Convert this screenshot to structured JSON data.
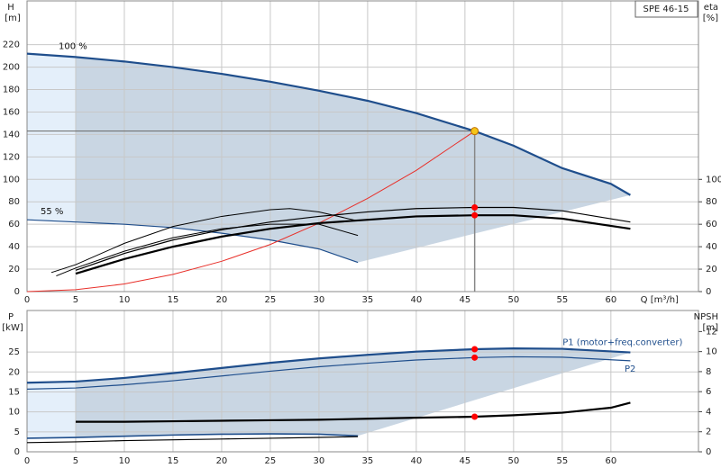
{
  "chart_data": [
    {
      "type": "line",
      "title": "SPE 46-15",
      "ylabel": "H",
      "ylabel_unit": "[m]",
      "y2label": "eta",
      "y2label_unit": "[%]",
      "xlabel": "Q [m³/h]",
      "xlim": [
        0,
        69
      ],
      "xticks": [
        0,
        5,
        10,
        15,
        20,
        25,
        30,
        35,
        40,
        45,
        50,
        55,
        60
      ],
      "ylim": [
        0,
        259
      ],
      "yticks": [
        0,
        20,
        40,
        60,
        80,
        100,
        120,
        140,
        160,
        180,
        200,
        220
      ],
      "y2lim": [
        0,
        259
      ],
      "y2ticks": [
        0,
        20,
        40,
        60,
        80,
        100
      ],
      "grid": true,
      "series": [
        {
          "name": "100 %",
          "color": "#1f4e8c",
          "width": 2.2,
          "x": [
            0,
            5,
            10,
            15,
            20,
            25,
            30,
            35,
            40,
            46,
            50,
            55,
            60,
            62
          ],
          "values": [
            212,
            209,
            205,
            200,
            194,
            187,
            179,
            170,
            159,
            143,
            130,
            110,
            96,
            86
          ]
        },
        {
          "name": "55 %",
          "color": "#1f4e8c",
          "width": 1.2,
          "x": [
            0,
            5,
            10,
            15,
            20,
            25,
            30,
            34
          ],
          "values": [
            64,
            62,
            60,
            57,
            52,
            46,
            38,
            26
          ]
        },
        {
          "color": "#e8302a",
          "width": 1,
          "x": [
            0,
            5,
            10,
            15,
            20,
            25,
            30,
            35,
            40,
            46
          ],
          "values": [
            0,
            1.7,
            6.8,
            15.3,
            27,
            42,
            61,
            83,
            108,
            143
          ]
        },
        {
          "color": "#000000",
          "width": 2.2,
          "axis": "y2",
          "x": [
            5,
            10,
            15,
            20,
            25,
            30,
            35,
            40,
            46,
            50,
            55,
            62
          ],
          "values": [
            16,
            29,
            40,
            49,
            56,
            61,
            64,
            67,
            68,
            68,
            65,
            56
          ]
        },
        {
          "color": "#000000",
          "width": 1.2,
          "axis": "y2",
          "x": [
            5,
            10,
            15,
            20,
            25,
            30,
            35,
            40,
            46,
            50,
            55,
            62
          ],
          "values": [
            19,
            34,
            46,
            55,
            62,
            67,
            71,
            74,
            75,
            75,
            72,
            62
          ]
        },
        {
          "color": "#000000",
          "width": 1,
          "axis": "y2",
          "x": [
            2.5,
            5,
            10,
            15,
            20,
            25,
            27,
            30,
            34
          ],
          "values": [
            17,
            24,
            43,
            58,
            67,
            73,
            74,
            71,
            63
          ]
        },
        {
          "color": "#000000",
          "width": 1,
          "axis": "y2",
          "x": [
            3,
            5,
            10,
            15,
            20,
            25,
            30,
            34
          ],
          "values": [
            14,
            21,
            36,
            48,
            56,
            60,
            60,
            50
          ]
        }
      ],
      "points": [
        {
          "x": 46,
          "y": 143,
          "color": "#f5c518"
        },
        {
          "x": 46,
          "y": 75,
          "axis": "y2",
          "color": "#ff0000"
        },
        {
          "x": 46,
          "y": 68,
          "axis": "y2",
          "color": "#ff0000"
        }
      ]
    },
    {
      "type": "line",
      "ylabel": "P",
      "ylabel_unit": "[kW]",
      "y2label": "NPSH",
      "y2label_unit": "[m]",
      "xlim": [
        0,
        69
      ],
      "xticks": [
        0,
        5,
        10,
        15,
        20,
        25,
        30,
        35,
        40,
        45,
        50,
        55,
        60
      ],
      "ylim": [
        0,
        35.4
      ],
      "yticks": [
        0,
        5,
        10,
        15,
        20,
        25
      ],
      "y2lim": [
        0,
        14.1
      ],
      "y2ticks": [
        0,
        2,
        4,
        6,
        8,
        10,
        12
      ],
      "grid": true,
      "series": [
        {
          "name": "P1 (motor+freq.converter)",
          "color": "#1f4e8c",
          "width": 2.2,
          "x": [
            0,
            5,
            10,
            15,
            20,
            25,
            30,
            35,
            40,
            46,
            50,
            55,
            62
          ],
          "values": [
            17.3,
            17.6,
            18.5,
            19.7,
            21,
            22.3,
            23.4,
            24.3,
            25.1,
            25.7,
            25.9,
            25.8,
            24.9
          ]
        },
        {
          "name": "P2",
          "color": "#1f4e8c",
          "width": 1.2,
          "x": [
            0,
            5,
            10,
            15,
            20,
            25,
            30,
            35,
            40,
            46,
            50,
            55,
            62
          ],
          "values": [
            15.7,
            16,
            16.8,
            17.8,
            19,
            20.2,
            21.3,
            22.2,
            23,
            23.6,
            23.8,
            23.7,
            22.8
          ]
        },
        {
          "color": "#1f4e8c",
          "width": 1.6,
          "x": [
            0,
            5,
            10,
            15,
            20,
            25,
            30,
            34
          ],
          "values": [
            3.4,
            3.6,
            3.9,
            4.2,
            4.4,
            4.5,
            4.4,
            4.0
          ]
        },
        {
          "color": "#000000",
          "width": 1.2,
          "x": [
            0,
            5,
            10,
            15,
            20,
            25,
            30,
            34
          ],
          "values": [
            2.3,
            2.5,
            2.8,
            3.0,
            3.2,
            3.4,
            3.6,
            3.8
          ]
        },
        {
          "color": "#000000",
          "width": 2.2,
          "axis": "y2",
          "x": [
            5,
            10,
            15,
            20,
            25,
            30,
            35,
            40,
            46,
            50,
            55,
            60,
            62
          ],
          "values": [
            3.0,
            3.0,
            3.05,
            3.1,
            3.15,
            3.2,
            3.3,
            3.4,
            3.5,
            3.65,
            3.9,
            4.4,
            4.9
          ]
        }
      ],
      "points": [
        {
          "x": 46,
          "y": 25.7,
          "color": "#ff0000"
        },
        {
          "x": 46,
          "y": 23.6,
          "color": "#ff0000"
        },
        {
          "x": 46,
          "y": 3.5,
          "axis": "y2",
          "color": "#ff0000"
        }
      ]
    }
  ]
}
